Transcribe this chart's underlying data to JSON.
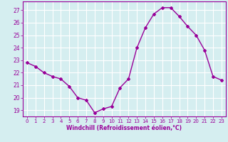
{
  "x": [
    0,
    1,
    2,
    3,
    4,
    5,
    6,
    7,
    8,
    9,
    10,
    11,
    12,
    13,
    14,
    15,
    16,
    17,
    18,
    19,
    20,
    21,
    22,
    23
  ],
  "y": [
    22.8,
    22.5,
    22.0,
    21.7,
    21.5,
    20.9,
    20.0,
    19.8,
    18.8,
    19.1,
    19.3,
    20.8,
    21.5,
    24.0,
    25.6,
    26.7,
    27.2,
    27.2,
    26.5,
    25.7,
    25.0,
    23.8,
    21.7,
    21.4
  ],
  "line_color": "#990099",
  "marker": "D",
  "marker_size": 2,
  "bg_color": "#d5eef0",
  "grid_color": "#ffffff",
  "xlabel": "Windchill (Refroidissement éolien,°C)",
  "xlabel_color": "#990099",
  "tick_color": "#990099",
  "ylim": [
    18.5,
    27.7
  ],
  "yticks": [
    19,
    20,
    21,
    22,
    23,
    24,
    25,
    26,
    27
  ],
  "xlim": [
    -0.5,
    23.5
  ],
  "xticks": [
    0,
    1,
    2,
    3,
    4,
    5,
    6,
    7,
    8,
    9,
    10,
    11,
    12,
    13,
    14,
    15,
    16,
    17,
    18,
    19,
    20,
    21,
    22,
    23
  ]
}
